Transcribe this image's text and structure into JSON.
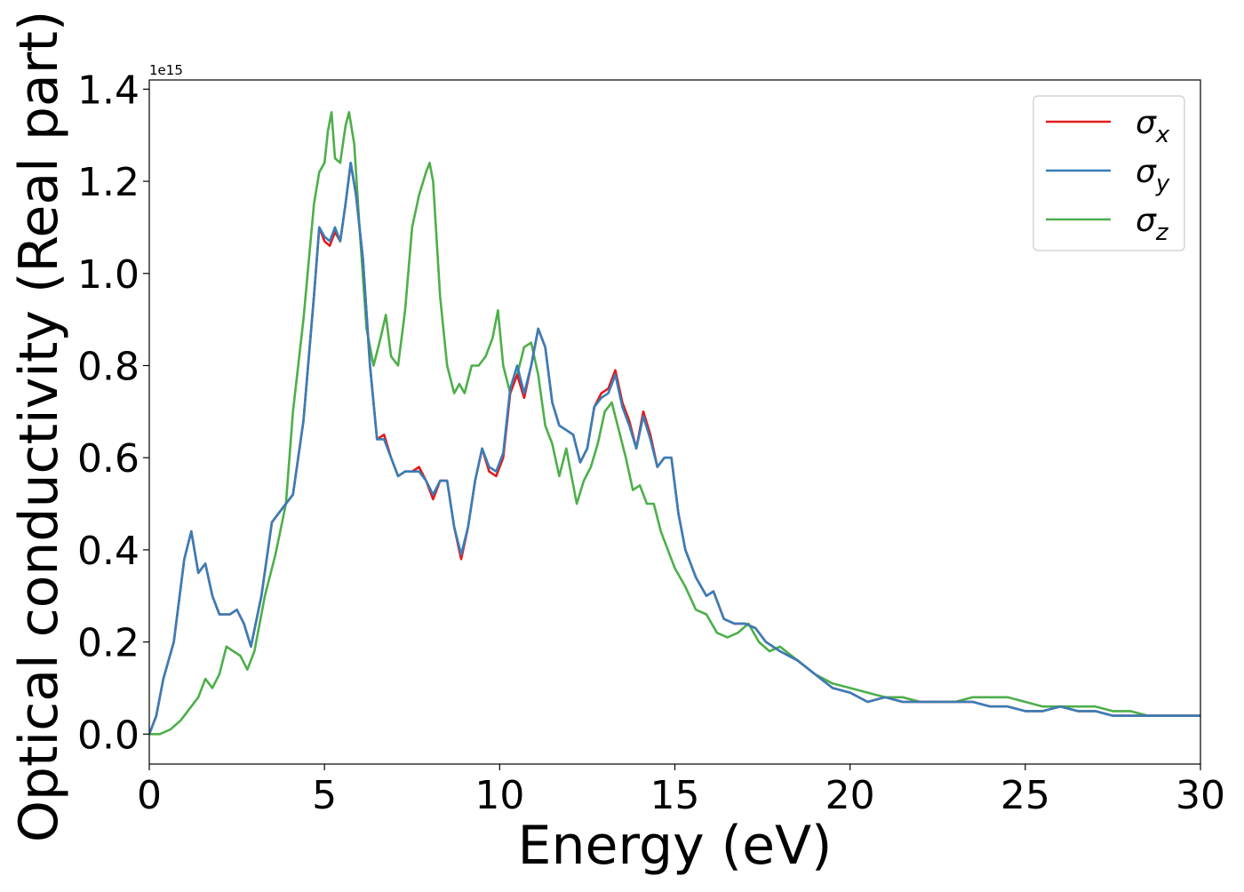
{
  "chart_data": {
    "type": "line",
    "xlabel": "Energy (eV)",
    "ylabel": "Optical conductivity (Real part)",
    "offset_text": "1e15",
    "xlim": [
      0,
      30
    ],
    "ylim": [
      -0.065,
      1.42
    ],
    "xticks": [
      0,
      5,
      10,
      15,
      20,
      25,
      30
    ],
    "yticks": [
      0.0,
      0.2,
      0.4,
      0.6,
      0.8,
      1.0,
      1.2,
      1.4
    ],
    "xtick_labels": [
      "0",
      "5",
      "10",
      "15",
      "20",
      "25",
      "30"
    ],
    "ytick_labels": [
      "0.0",
      "0.2",
      "0.4",
      "0.6",
      "0.8",
      "1.0",
      "1.2",
      "1.4"
    ],
    "legend_position": "top-right",
    "grid": false,
    "series": [
      {
        "name": "σx",
        "sym": "σ",
        "sub": "x",
        "color": "#e41a1c",
        "x": [
          0,
          0.2,
          0.4,
          0.7,
          1.0,
          1.2,
          1.4,
          1.6,
          1.8,
          2.0,
          2.3,
          2.5,
          2.7,
          2.9,
          3.2,
          3.5,
          3.8,
          4.1,
          4.4,
          4.7,
          4.85,
          5.0,
          5.15,
          5.3,
          5.45,
          5.6,
          5.75,
          5.9,
          6.1,
          6.3,
          6.5,
          6.7,
          6.9,
          7.1,
          7.3,
          7.5,
          7.7,
          7.9,
          8.1,
          8.3,
          8.5,
          8.7,
          8.9,
          9.1,
          9.3,
          9.5,
          9.7,
          9.9,
          10.1,
          10.3,
          10.5,
          10.7,
          10.9,
          11.1,
          11.3,
          11.5,
          11.7,
          11.9,
          12.1,
          12.3,
          12.5,
          12.7,
          12.9,
          13.1,
          13.3,
          13.5,
          13.7,
          13.9,
          14.1,
          14.3,
          14.5,
          14.7,
          14.9,
          15.1,
          15.3,
          15.6,
          15.9,
          16.1,
          16.4,
          16.7,
          17.0,
          17.3,
          17.6,
          18.0,
          18.5,
          19.0,
          19.5,
          20.0,
          20.5,
          21.0,
          21.5,
          22.0,
          22.5,
          23.0,
          23.5,
          24.0,
          24.5,
          25.0,
          25.5,
          26.0,
          26.5,
          27.0,
          27.5,
          28.0,
          28.5,
          29.0,
          29.5,
          30.0
        ],
        "y": [
          0.0,
          0.04,
          0.12,
          0.2,
          0.38,
          0.44,
          0.35,
          0.37,
          0.3,
          0.26,
          0.26,
          0.27,
          0.24,
          0.19,
          0.3,
          0.46,
          0.49,
          0.52,
          0.68,
          0.95,
          1.1,
          1.07,
          1.06,
          1.09,
          1.07,
          1.15,
          1.24,
          1.17,
          1.03,
          0.8,
          0.64,
          0.65,
          0.6,
          0.56,
          0.57,
          0.57,
          0.58,
          0.55,
          0.51,
          0.55,
          0.55,
          0.45,
          0.38,
          0.45,
          0.55,
          0.62,
          0.57,
          0.56,
          0.6,
          0.74,
          0.78,
          0.73,
          0.8,
          0.88,
          0.84,
          0.72,
          0.67,
          0.66,
          0.65,
          0.59,
          0.62,
          0.71,
          0.74,
          0.75,
          0.79,
          0.72,
          0.68,
          0.62,
          0.7,
          0.65,
          0.58,
          0.6,
          0.6,
          0.48,
          0.4,
          0.34,
          0.3,
          0.31,
          0.25,
          0.24,
          0.24,
          0.23,
          0.2,
          0.18,
          0.16,
          0.13,
          0.1,
          0.09,
          0.07,
          0.08,
          0.07,
          0.07,
          0.07,
          0.07,
          0.07,
          0.06,
          0.06,
          0.05,
          0.05,
          0.06,
          0.05,
          0.05,
          0.04,
          0.04,
          0.04,
          0.04,
          0.04,
          0.04
        ]
      },
      {
        "name": "σy",
        "sym": "σ",
        "sub": "y",
        "color": "#377eb8",
        "x": [
          0,
          0.2,
          0.4,
          0.7,
          1.0,
          1.2,
          1.4,
          1.6,
          1.8,
          2.0,
          2.3,
          2.5,
          2.7,
          2.9,
          3.2,
          3.5,
          3.8,
          4.1,
          4.4,
          4.7,
          4.85,
          5.0,
          5.15,
          5.3,
          5.45,
          5.6,
          5.75,
          5.9,
          6.1,
          6.3,
          6.5,
          6.7,
          6.9,
          7.1,
          7.3,
          7.5,
          7.7,
          7.9,
          8.1,
          8.3,
          8.5,
          8.7,
          8.9,
          9.1,
          9.3,
          9.5,
          9.7,
          9.9,
          10.1,
          10.3,
          10.5,
          10.7,
          10.9,
          11.1,
          11.3,
          11.5,
          11.7,
          11.9,
          12.1,
          12.3,
          12.5,
          12.7,
          12.9,
          13.1,
          13.3,
          13.5,
          13.7,
          13.9,
          14.1,
          14.3,
          14.5,
          14.7,
          14.9,
          15.1,
          15.3,
          15.6,
          15.9,
          16.1,
          16.4,
          16.7,
          17.0,
          17.3,
          17.6,
          18.0,
          18.5,
          19.0,
          19.5,
          20.0,
          20.5,
          21.0,
          21.5,
          22.0,
          22.5,
          23.0,
          23.5,
          24.0,
          24.5,
          25.0,
          25.5,
          26.0,
          26.5,
          27.0,
          27.5,
          28.0,
          28.5,
          29.0,
          29.5,
          30.0
        ],
        "y": [
          0.0,
          0.04,
          0.12,
          0.2,
          0.38,
          0.44,
          0.35,
          0.37,
          0.3,
          0.26,
          0.26,
          0.27,
          0.24,
          0.19,
          0.3,
          0.46,
          0.49,
          0.52,
          0.68,
          0.95,
          1.1,
          1.08,
          1.07,
          1.1,
          1.07,
          1.15,
          1.24,
          1.17,
          1.03,
          0.8,
          0.64,
          0.64,
          0.6,
          0.56,
          0.57,
          0.57,
          0.57,
          0.55,
          0.52,
          0.55,
          0.55,
          0.45,
          0.39,
          0.45,
          0.55,
          0.62,
          0.58,
          0.57,
          0.61,
          0.75,
          0.8,
          0.74,
          0.8,
          0.88,
          0.84,
          0.72,
          0.67,
          0.66,
          0.65,
          0.59,
          0.62,
          0.71,
          0.73,
          0.74,
          0.78,
          0.71,
          0.67,
          0.62,
          0.69,
          0.64,
          0.58,
          0.6,
          0.6,
          0.48,
          0.4,
          0.34,
          0.3,
          0.31,
          0.25,
          0.24,
          0.24,
          0.23,
          0.2,
          0.18,
          0.16,
          0.13,
          0.1,
          0.09,
          0.07,
          0.08,
          0.07,
          0.07,
          0.07,
          0.07,
          0.07,
          0.06,
          0.06,
          0.05,
          0.05,
          0.06,
          0.05,
          0.05,
          0.04,
          0.04,
          0.04,
          0.04,
          0.04,
          0.04
        ]
      },
      {
        "name": "σz",
        "sym": "σ",
        "sub": "z",
        "color": "#4daf4a",
        "x": [
          0,
          0.3,
          0.6,
          0.9,
          1.2,
          1.4,
          1.6,
          1.8,
          2.0,
          2.2,
          2.4,
          2.6,
          2.8,
          3.0,
          3.3,
          3.6,
          3.9,
          4.1,
          4.4,
          4.7,
          4.85,
          5.0,
          5.1,
          5.2,
          5.3,
          5.45,
          5.6,
          5.7,
          5.85,
          6.0,
          6.2,
          6.4,
          6.6,
          6.75,
          6.9,
          7.1,
          7.3,
          7.5,
          7.7,
          7.9,
          8.0,
          8.1,
          8.3,
          8.5,
          8.7,
          8.85,
          9.0,
          9.2,
          9.4,
          9.6,
          9.8,
          9.95,
          10.1,
          10.3,
          10.5,
          10.7,
          10.9,
          11.1,
          11.3,
          11.5,
          11.7,
          11.9,
          12.0,
          12.2,
          12.4,
          12.6,
          12.8,
          13.0,
          13.2,
          13.4,
          13.6,
          13.8,
          14.0,
          14.2,
          14.4,
          14.6,
          14.8,
          15.0,
          15.3,
          15.6,
          15.9,
          16.2,
          16.5,
          16.8,
          17.1,
          17.4,
          17.7,
          18.0,
          18.5,
          19.0,
          19.5,
          20.0,
          20.5,
          21.0,
          21.5,
          22.0,
          22.5,
          23.0,
          23.5,
          24.0,
          24.5,
          25.0,
          25.5,
          26.0,
          26.5,
          27.0,
          27.5,
          28.0,
          28.5,
          29.0,
          29.5,
          30.0
        ],
        "y": [
          0.0,
          0.0,
          0.01,
          0.03,
          0.06,
          0.08,
          0.12,
          0.1,
          0.13,
          0.19,
          0.18,
          0.17,
          0.14,
          0.18,
          0.3,
          0.39,
          0.5,
          0.7,
          0.9,
          1.15,
          1.22,
          1.24,
          1.31,
          1.35,
          1.25,
          1.24,
          1.32,
          1.35,
          1.28,
          1.1,
          0.88,
          0.8,
          0.86,
          0.91,
          0.82,
          0.8,
          0.92,
          1.1,
          1.17,
          1.22,
          1.24,
          1.2,
          0.95,
          0.8,
          0.74,
          0.76,
          0.74,
          0.8,
          0.8,
          0.82,
          0.86,
          0.92,
          0.8,
          0.74,
          0.78,
          0.84,
          0.85,
          0.78,
          0.67,
          0.63,
          0.56,
          0.62,
          0.58,
          0.5,
          0.55,
          0.58,
          0.63,
          0.7,
          0.72,
          0.66,
          0.6,
          0.53,
          0.54,
          0.5,
          0.5,
          0.44,
          0.4,
          0.36,
          0.32,
          0.27,
          0.26,
          0.22,
          0.21,
          0.22,
          0.24,
          0.2,
          0.18,
          0.19,
          0.16,
          0.13,
          0.11,
          0.1,
          0.09,
          0.08,
          0.08,
          0.07,
          0.07,
          0.07,
          0.08,
          0.08,
          0.08,
          0.07,
          0.06,
          0.06,
          0.06,
          0.06,
          0.05,
          0.05,
          0.04,
          0.04,
          0.04,
          0.04
        ]
      }
    ]
  }
}
